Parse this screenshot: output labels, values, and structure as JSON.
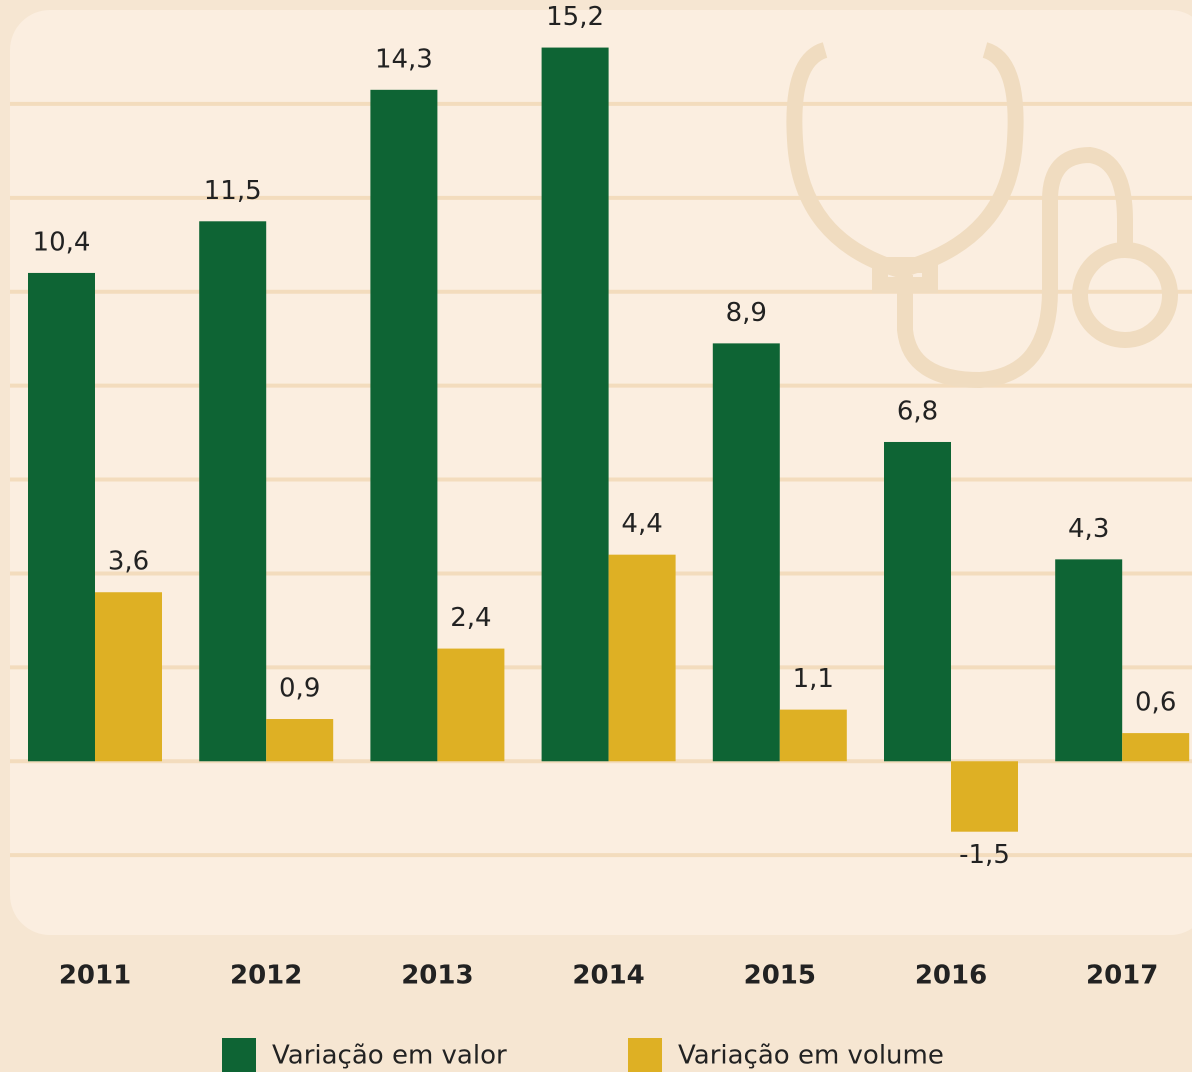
{
  "chart_data": {
    "type": "bar",
    "categories": [
      "2011",
      "2012",
      "2013",
      "2014",
      "2015",
      "2016",
      "2017"
    ],
    "series": [
      {
        "name": "Variação em valor",
        "color": "#0e6434",
        "values": [
          10.4,
          11.5,
          14.3,
          15.2,
          8.9,
          6.8,
          4.3
        ],
        "value_labels": [
          "10,4",
          "11,5",
          "14,3",
          "15,2",
          "8,9",
          "6,8",
          "4,3"
        ]
      },
      {
        "name": "Variação em volume",
        "color": "#deb024",
        "values": [
          3.6,
          0.9,
          2.4,
          4.4,
          1.1,
          -1.5,
          0.6
        ],
        "value_labels": [
          "3,6",
          "0,9",
          "2,4",
          "4,4",
          "1,1",
          "-1,5",
          "0,6"
        ]
      }
    ],
    "ylim": [
      -3.7,
      16
    ],
    "yticks": [
      -2,
      0,
      2,
      4,
      6,
      8,
      10,
      12,
      14
    ],
    "grid": true
  }
}
